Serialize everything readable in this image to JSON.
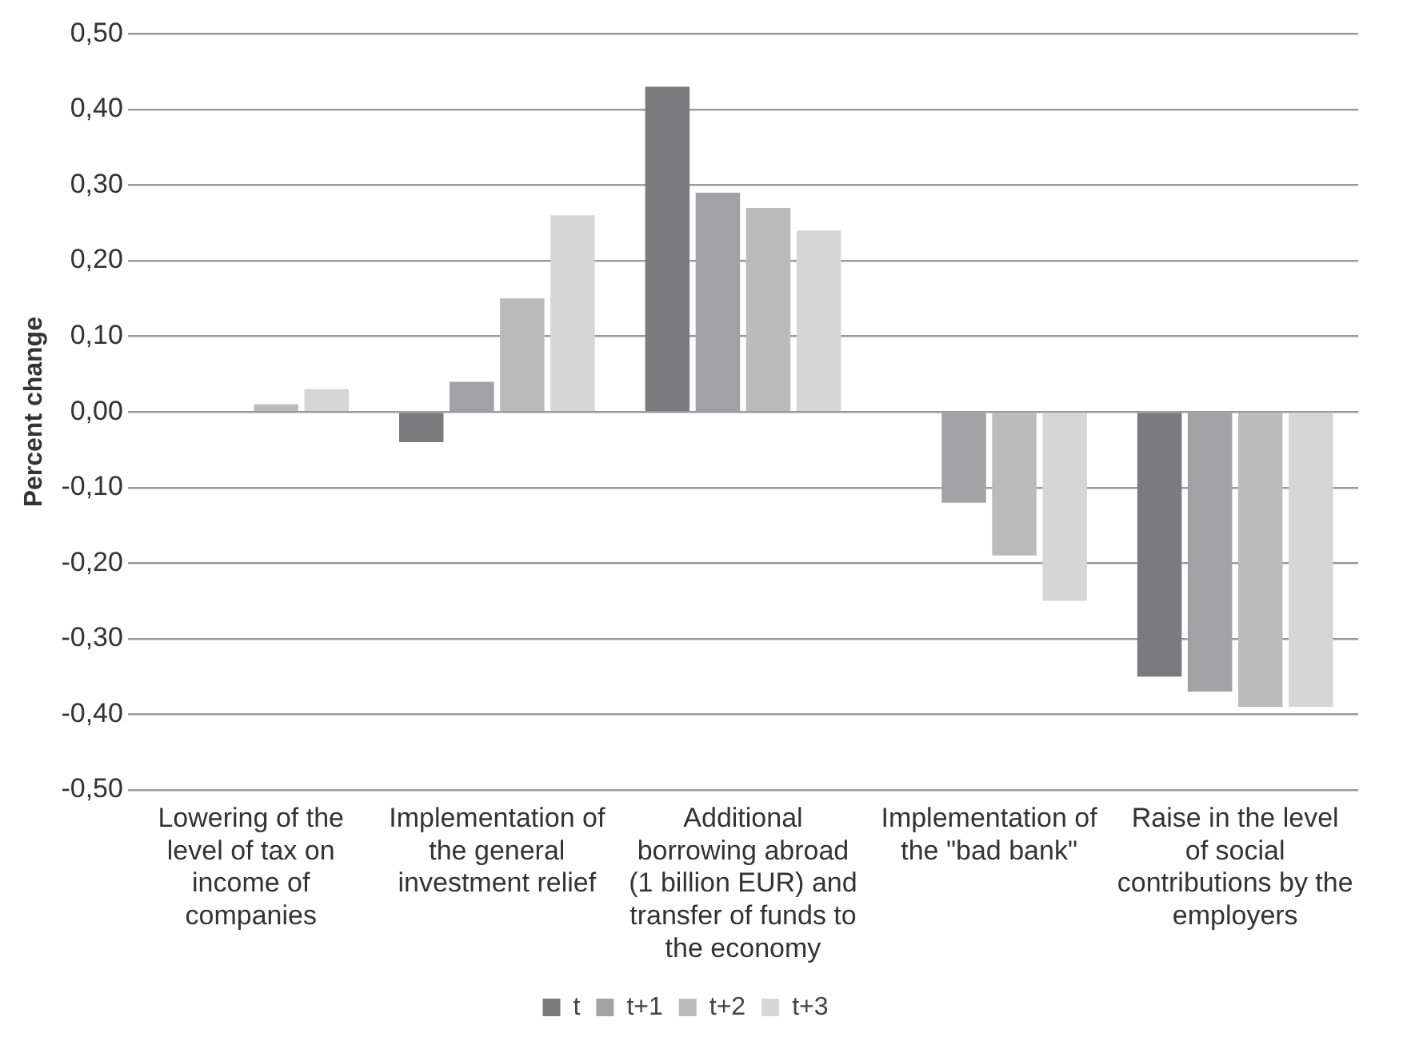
{
  "chart_data": {
    "type": "bar",
    "ylabel": "Percent change",
    "categories": [
      "Lowering of the level of tax on income of companies",
      "Implementation of the general investment relief",
      "Additional borrowing abroad (1 billion EUR) and transfer of funds to the economy",
      "Implementation of the \"bad bank\"",
      "Raise in the level of social contributions by the employers"
    ],
    "series": [
      {
        "name": "t",
        "color": "#7b7b7d",
        "values": [
          0,
          -0.04,
          0.43,
          0,
          -0.35
        ]
      },
      {
        "name": "t+1",
        "color": "#a2a2a4",
        "values": [
          0,
          0.04,
          0.29,
          -0.12,
          -0.37
        ]
      },
      {
        "name": "t+2",
        "color": "#bbbbbb",
        "values": [
          0.01,
          0.15,
          0.27,
          -0.19,
          -0.39
        ]
      },
      {
        "name": "t+3",
        "color": "#d6d6d6",
        "values": [
          0.03,
          0.26,
          0.24,
          -0.25,
          -0.39
        ]
      }
    ],
    "ylim": [
      -0.5,
      0.5
    ],
    "yticks": [
      {
        "value": -0.5,
        "label": "-0,50"
      },
      {
        "value": -0.4,
        "label": "-0,40"
      },
      {
        "value": -0.3,
        "label": "-0,30"
      },
      {
        "value": -0.2,
        "label": "-0,20"
      },
      {
        "value": -0.1,
        "label": "-0,10"
      },
      {
        "value": 0,
        "label": "0,00"
      },
      {
        "value": 0.1,
        "label": "0,10"
      },
      {
        "value": 0.2,
        "label": "0,20"
      },
      {
        "value": 0.3,
        "label": "0,30"
      },
      {
        "value": 0.4,
        "label": "0,40"
      },
      {
        "value": 0.5,
        "label": "0,50"
      }
    ],
    "grid": "y",
    "legend": "bottom"
  }
}
